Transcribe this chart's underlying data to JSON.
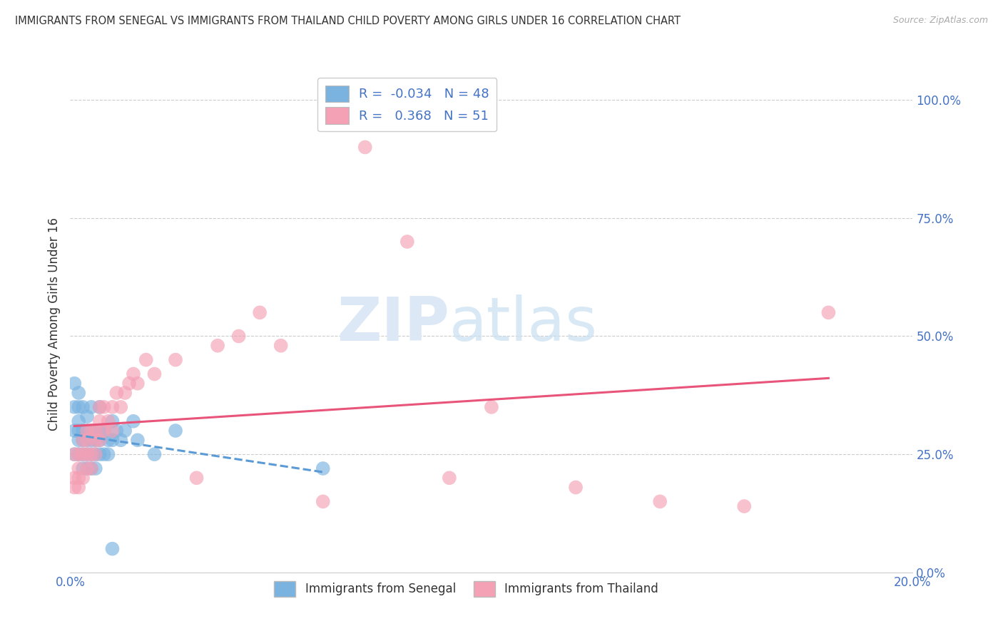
{
  "title": "IMMIGRANTS FROM SENEGAL VS IMMIGRANTS FROM THAILAND CHILD POVERTY AMONG GIRLS UNDER 16 CORRELATION CHART",
  "source": "Source: ZipAtlas.com",
  "ylabel": "Child Poverty Among Girls Under 16",
  "xlim": [
    0.0,
    0.2
  ],
  "ylim": [
    0.0,
    1.05
  ],
  "ytick_vals": [
    0.0,
    0.25,
    0.5,
    0.75,
    1.0
  ],
  "ytick_labels": [
    "0.0%",
    "25.0%",
    "50.0%",
    "75.0%",
    "100.0%"
  ],
  "xtick_vals": [
    0.0,
    0.05,
    0.1,
    0.15,
    0.2
  ],
  "xtick_labels": [
    "0.0%",
    "",
    "",
    "",
    "20.0%"
  ],
  "senegal_color": "#7ab3e0",
  "senegal_line_color": "#5b9bd5",
  "thailand_color": "#f4a0b5",
  "thailand_line_color": "#e8547a",
  "senegal_R": -0.034,
  "senegal_N": 48,
  "thailand_R": 0.368,
  "thailand_N": 51,
  "watermark_zip": "ZIP",
  "watermark_atlas": "atlas",
  "legend_label_senegal": "Immigrants from Senegal",
  "legend_label_thailand": "Immigrants from Thailand",
  "senegal_x": [
    0.001,
    0.001,
    0.001,
    0.001,
    0.002,
    0.002,
    0.002,
    0.002,
    0.002,
    0.002,
    0.003,
    0.003,
    0.003,
    0.003,
    0.003,
    0.004,
    0.004,
    0.004,
    0.004,
    0.004,
    0.005,
    0.005,
    0.005,
    0.005,
    0.005,
    0.006,
    0.006,
    0.006,
    0.006,
    0.007,
    0.007,
    0.007,
    0.007,
    0.008,
    0.008,
    0.009,
    0.009,
    0.01,
    0.01,
    0.011,
    0.012,
    0.013,
    0.015,
    0.016,
    0.02,
    0.025,
    0.06,
    0.01
  ],
  "senegal_y": [
    0.25,
    0.3,
    0.35,
    0.4,
    0.25,
    0.28,
    0.3,
    0.32,
    0.35,
    0.38,
    0.22,
    0.25,
    0.28,
    0.3,
    0.35,
    0.22,
    0.25,
    0.28,
    0.3,
    0.33,
    0.22,
    0.25,
    0.28,
    0.3,
    0.35,
    0.22,
    0.25,
    0.28,
    0.3,
    0.25,
    0.28,
    0.3,
    0.35,
    0.25,
    0.3,
    0.25,
    0.28,
    0.28,
    0.32,
    0.3,
    0.28,
    0.3,
    0.32,
    0.28,
    0.25,
    0.3,
    0.22,
    0.05
  ],
  "thailand_x": [
    0.001,
    0.001,
    0.001,
    0.002,
    0.002,
    0.002,
    0.002,
    0.003,
    0.003,
    0.003,
    0.004,
    0.004,
    0.004,
    0.004,
    0.005,
    0.005,
    0.005,
    0.006,
    0.006,
    0.006,
    0.007,
    0.007,
    0.007,
    0.008,
    0.008,
    0.009,
    0.01,
    0.01,
    0.011,
    0.012,
    0.013,
    0.014,
    0.015,
    0.016,
    0.018,
    0.02,
    0.025,
    0.03,
    0.035,
    0.04,
    0.045,
    0.05,
    0.06,
    0.07,
    0.08,
    0.09,
    0.1,
    0.12,
    0.14,
    0.16,
    0.18
  ],
  "thailand_y": [
    0.2,
    0.25,
    0.18,
    0.22,
    0.25,
    0.18,
    0.2,
    0.25,
    0.28,
    0.2,
    0.22,
    0.25,
    0.28,
    0.3,
    0.22,
    0.25,
    0.3,
    0.25,
    0.28,
    0.3,
    0.28,
    0.32,
    0.35,
    0.3,
    0.35,
    0.32,
    0.3,
    0.35,
    0.38,
    0.35,
    0.38,
    0.4,
    0.42,
    0.4,
    0.45,
    0.42,
    0.45,
    0.2,
    0.48,
    0.5,
    0.55,
    0.48,
    0.15,
    0.9,
    0.7,
    0.2,
    0.35,
    0.18,
    0.15,
    0.14,
    0.55
  ]
}
